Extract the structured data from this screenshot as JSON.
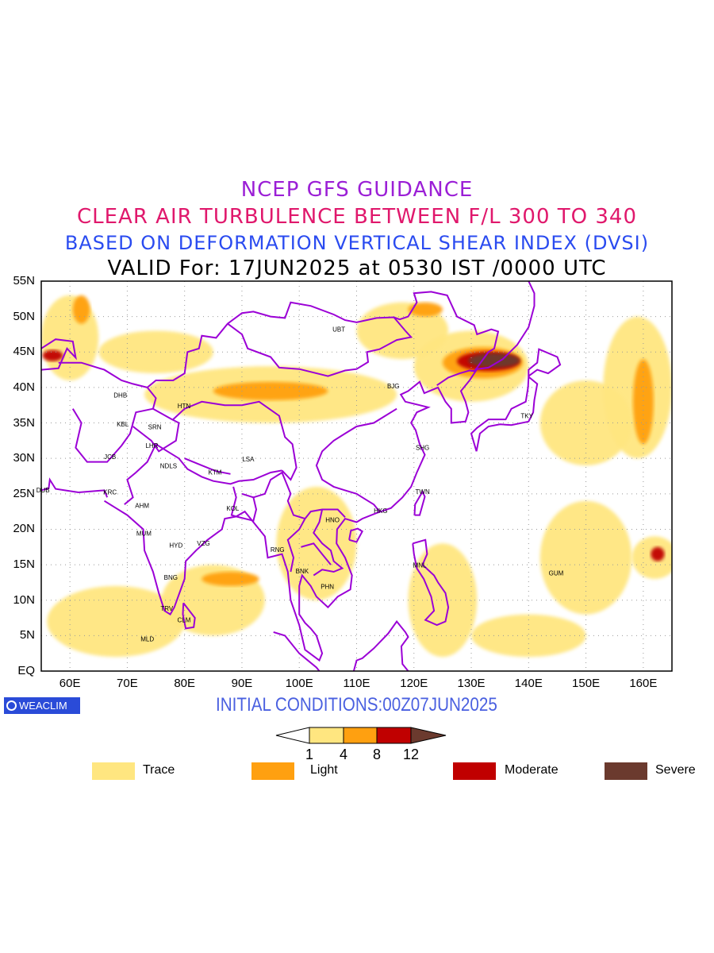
{
  "titles": {
    "line1": "NCEP GFS GUIDANCE",
    "line2": "CLEAR AIR TURBULENCE BETWEEN F/L 300 TO 340",
    "line3": "BASED ON DEFORMATION VERTICAL SHEAR INDEX (DVSI)",
    "line4": "VALID For: 17JUN2025 at 0530 IST /0000 UTC"
  },
  "colors": {
    "title1": "#9b1fd6",
    "title2": "#e0186c",
    "title3": "#2a4bf0",
    "title4": "#000000",
    "init": "#4a60e0",
    "trace": "#ffe680",
    "light": "#ffa010",
    "moderate": "#c00000",
    "severe": "#6b3a2e",
    "border": "#9b00d6"
  },
  "axes": {
    "lat_labels": [
      "55N",
      "50N",
      "45N",
      "40N",
      "35N",
      "30N",
      "25N",
      "20N",
      "15N",
      "10N",
      "5N",
      "EQ"
    ],
    "lon_labels": [
      "60E",
      "70E",
      "80E",
      "90E",
      "100E",
      "110E",
      "120E",
      "130E",
      "140E",
      "150E",
      "160E"
    ]
  },
  "cities": [
    {
      "code": "UBT",
      "lon": 106.9,
      "lat": 47.9
    },
    {
      "code": "BJG",
      "lon": 116.4,
      "lat": 39.9
    },
    {
      "code": "TKY",
      "lon": 139.7,
      "lat": 35.7
    },
    {
      "code": "SHG",
      "lon": 121.5,
      "lat": 31.2
    },
    {
      "code": "TWN",
      "lon": 121.5,
      "lat": 25.0
    },
    {
      "code": "HKG",
      "lon": 114.2,
      "lat": 22.3
    },
    {
      "code": "HNO",
      "lon": 105.8,
      "lat": 21.0
    },
    {
      "code": "MNL",
      "lon": 121.0,
      "lat": 14.6
    },
    {
      "code": "GUM",
      "lon": 144.8,
      "lat": 13.5
    },
    {
      "code": "BNK",
      "lon": 100.5,
      "lat": 13.8
    },
    {
      "code": "PHN",
      "lon": 104.9,
      "lat": 11.6
    },
    {
      "code": "RNG",
      "lon": 96.2,
      "lat": 16.8
    },
    {
      "code": "KOL",
      "lon": 88.4,
      "lat": 22.6
    },
    {
      "code": "KTM",
      "lon": 85.3,
      "lat": 27.7
    },
    {
      "code": "LSA",
      "lon": 91.1,
      "lat": 29.6
    },
    {
      "code": "NDLS",
      "lon": 77.2,
      "lat": 28.6
    },
    {
      "code": "LHR",
      "lon": 74.3,
      "lat": 31.5
    },
    {
      "code": "SRN",
      "lon": 74.8,
      "lat": 34.1
    },
    {
      "code": "KBL",
      "lon": 69.2,
      "lat": 34.5
    },
    {
      "code": "DHB",
      "lon": 68.8,
      "lat": 38.6
    },
    {
      "code": "HTN",
      "lon": 79.9,
      "lat": 37.1
    },
    {
      "code": "JCB",
      "lon": 67.0,
      "lat": 29.9
    },
    {
      "code": "KRC",
      "lon": 67.0,
      "lat": 24.9
    },
    {
      "code": "DUB",
      "lon": 55.3,
      "lat": 25.2
    },
    {
      "code": "AHM",
      "lon": 72.6,
      "lat": 23.0
    },
    {
      "code": "MUM",
      "lon": 72.9,
      "lat": 19.1
    },
    {
      "code": "HYD",
      "lon": 78.5,
      "lat": 17.4
    },
    {
      "code": "VZG",
      "lon": 83.3,
      "lat": 17.7
    },
    {
      "code": "BNG",
      "lon": 77.6,
      "lat": 12.9
    },
    {
      "code": "TRV",
      "lon": 76.9,
      "lat": 8.5
    },
    {
      "code": "CLM",
      "lon": 79.9,
      "lat": 6.9
    },
    {
      "code": "MLD",
      "lon": 73.5,
      "lat": 4.2
    }
  ],
  "map": {
    "lon_range": [
      55,
      165
    ],
    "lat_range": [
      0,
      55
    ],
    "grid_lons": [
      60,
      70,
      80,
      90,
      100,
      110,
      120,
      130,
      140,
      150,
      160
    ],
    "grid_lats": [
      5,
      10,
      15,
      20,
      25,
      30,
      35,
      40,
      45,
      50
    ]
  },
  "turbulence_areas": [
    {
      "level": "trace",
      "lon": 130,
      "lat": 43,
      "rlon": 10,
      "rlat": 5
    },
    {
      "level": "light",
      "lon": 132,
      "lat": 43.5,
      "rlon": 7,
      "rlat": 2.2
    },
    {
      "level": "moderate",
      "lon": 133,
      "lat": 43.7,
      "rlon": 5.5,
      "rlat": 1.4
    },
    {
      "level": "severe",
      "lon": 134,
      "lat": 43.8,
      "rlon": 4.5,
      "rlat": 1
    },
    {
      "level": "trace",
      "lon": 95,
      "lat": 39,
      "rlon": 22,
      "rlat": 4
    },
    {
      "level": "light",
      "lon": 95,
      "lat": 39.5,
      "rlon": 10,
      "rlat": 1.3
    },
    {
      "level": "trace",
      "lon": 159,
      "lat": 40,
      "rlon": 6,
      "rlat": 10
    },
    {
      "level": "light",
      "lon": 160,
      "lat": 38,
      "rlon": 1.8,
      "rlat": 6
    },
    {
      "level": "trace",
      "lon": 162,
      "lat": 16,
      "rlon": 4,
      "rlat": 3
    },
    {
      "level": "moderate",
      "lon": 162.5,
      "lat": 16.5,
      "rlon": 1.2,
      "rlat": 1
    },
    {
      "level": "trace",
      "lon": 60,
      "lat": 47,
      "rlon": 5,
      "rlat": 6
    },
    {
      "level": "light",
      "lon": 62,
      "lat": 51,
      "rlon": 1.5,
      "rlat": 2
    },
    {
      "level": "moderate",
      "lon": 57,
      "lat": 44.5,
      "rlon": 1.8,
      "rlat": 0.8
    },
    {
      "level": "trace",
      "lon": 85,
      "lat": 10,
      "rlon": 9,
      "rlat": 5
    },
    {
      "level": "trace",
      "lon": 68,
      "lat": 7,
      "rlon": 12,
      "rlat": 5
    },
    {
      "level": "trace",
      "lon": 150,
      "lat": 35,
      "rlon": 8,
      "rlat": 6
    },
    {
      "level": "trace",
      "lon": 103,
      "lat": 18,
      "rlon": 7,
      "rlat": 8
    },
    {
      "level": "trace",
      "lon": 118,
      "lat": 48,
      "rlon": 8,
      "rlat": 4
    },
    {
      "level": "light",
      "lon": 122,
      "lat": 51,
      "rlon": 3,
      "rlat": 1
    },
    {
      "level": "trace",
      "lon": 150,
      "lat": 16,
      "rlon": 8,
      "rlat": 8
    },
    {
      "level": "trace",
      "lon": 125,
      "lat": 10,
      "rlon": 6,
      "rlat": 8
    },
    {
      "level": "trace",
      "lon": 75,
      "lat": 45,
      "rlon": 10,
      "rlat": 3
    },
    {
      "level": "trace",
      "lon": 140,
      "lat": 5,
      "rlon": 10,
      "rlat": 3
    },
    {
      "level": "light",
      "lon": 88,
      "lat": 13,
      "rlon": 5,
      "rlat": 1
    }
  ],
  "colorbar": {
    "ticks": [
      "1",
      "4",
      "8",
      "12"
    ]
  },
  "legend": [
    {
      "label": "Trace",
      "level": "trace"
    },
    {
      "label": "Light",
      "level": "light"
    },
    {
      "label": "Moderate",
      "level": "moderate"
    },
    {
      "label": "Severe",
      "level": "severe"
    }
  ],
  "footer": {
    "logo_text": "WEACLIM",
    "init_conditions": "INITIAL CONDITIONS:00Z07JUN2025"
  }
}
